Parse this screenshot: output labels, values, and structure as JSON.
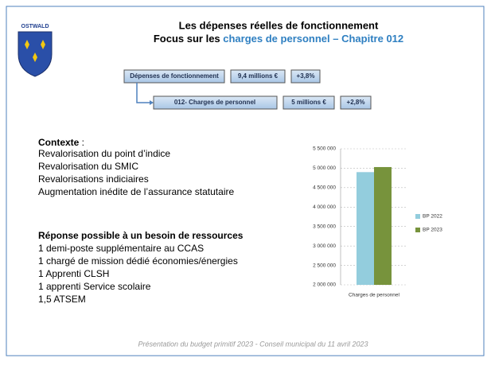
{
  "logo": {
    "name": "OSTWALD"
  },
  "header": {
    "title": "Les dépenses réelles de fonctionnement",
    "subtitle_prefix": "Focus sur les ",
    "subtitle_highlight": "charges de personnel – Chapitre 012"
  },
  "flow": {
    "row1": [
      "Dépenses de fonctionnement",
      "9,4 millions €",
      "+3,8%"
    ],
    "row2": [
      "012- Charges de personnel",
      "5 millions €",
      "+2,8%"
    ]
  },
  "context": {
    "heading": "Contexte",
    "heading_suffix": " :",
    "items": [
      "Revalorisation du point d’indice",
      "Revalorisation du SMIC",
      "Revalorisations indiciaires",
      "Augmentation inédite de l’assurance statutaire"
    ]
  },
  "response": {
    "heading": "Réponse possible à un besoin de ressources",
    "items": [
      "1 demi-poste supplémentaire au CCAS",
      "1 chargé de mission dédié économies/énergies",
      "1 Apprenti CLSH",
      "1 apprenti Service scolaire",
      "1,5 ATSEM"
    ]
  },
  "footer": "Présentation du budget primitif 2023 - Conseil municipal du 11 avril 2023",
  "chart_data": {
    "type": "bar",
    "categories": [
      "Charges de personnel"
    ],
    "series": [
      {
        "name": "BP 2022",
        "color": "#93cddd",
        "values": [
          4900000
        ]
      },
      {
        "name": "BP 2023",
        "color": "#77933c",
        "values": [
          5030000
        ]
      }
    ],
    "ylim": [
      2000000,
      5500000
    ],
    "yticks": [
      {
        "value": 2000000,
        "label": "2 000 000"
      },
      {
        "value": 2500000,
        "label": "2 500 000"
      },
      {
        "value": 3000000,
        "label": "3 000 000"
      },
      {
        "value": 3500000,
        "label": "3 500 000"
      },
      {
        "value": 4000000,
        "label": "4 000 000"
      },
      {
        "value": 4500000,
        "label": "4 500 000"
      },
      {
        "value": 5000000,
        "label": "5 000 000"
      },
      {
        "value": 5500000,
        "label": "5 500 000"
      }
    ],
    "grid": true,
    "legend": "right"
  }
}
